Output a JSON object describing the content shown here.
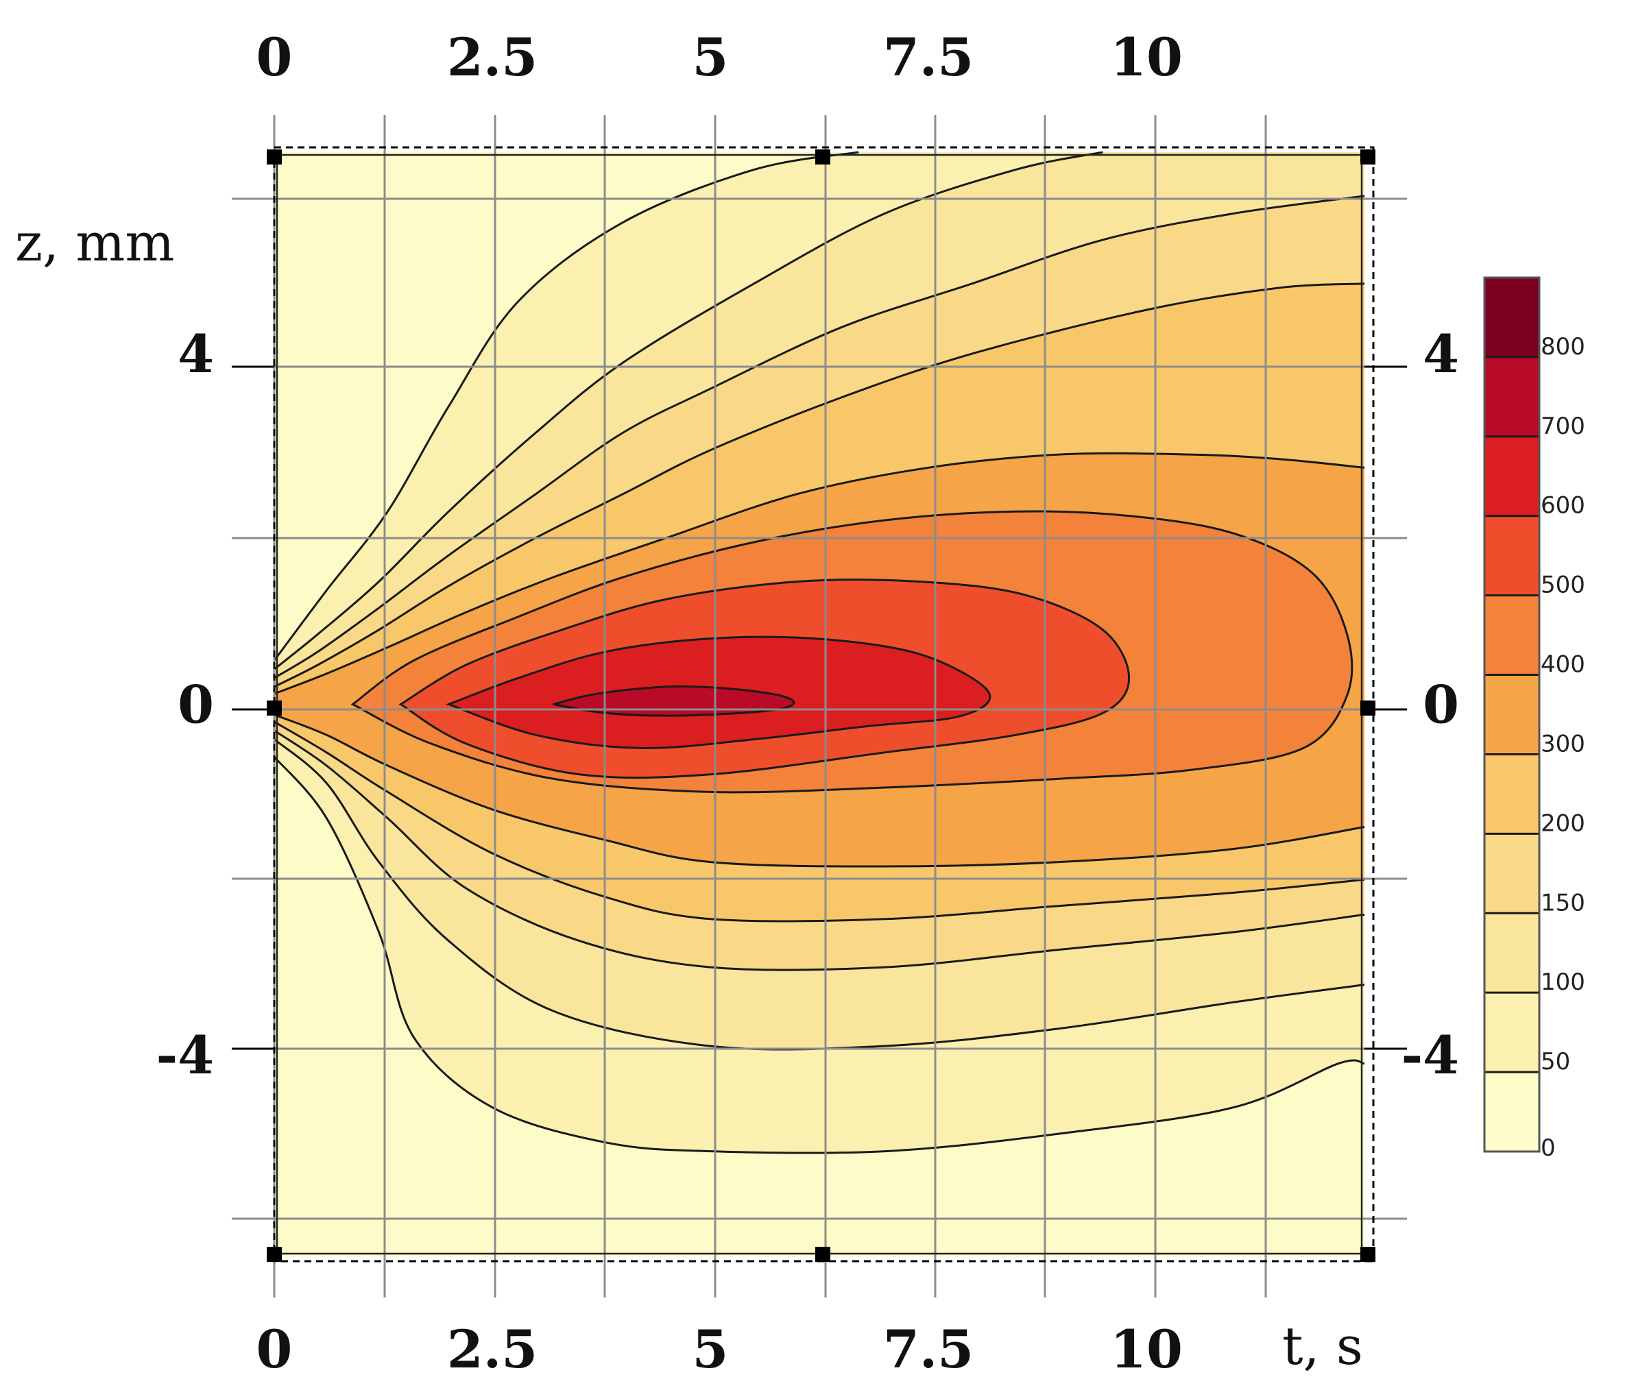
{
  "chart_data": {
    "type": "contour",
    "xlabel": "t, s",
    "ylabel": "z, mm",
    "xlim": [
      0,
      12.5
    ],
    "ylim": [
      -6.3,
      6.3
    ],
    "x_ticks": [
      "0",
      "2.5",
      "5",
      "7.5",
      "10"
    ],
    "x_tick_values": [
      0,
      2.5,
      5,
      7.5,
      10
    ],
    "y_ticks": [
      "4",
      "0",
      "-4"
    ],
    "y_tick_values": [
      4,
      0,
      -4
    ],
    "grid": true,
    "colorbar": {
      "levels": [
        0,
        50,
        100,
        150,
        200,
        300,
        400,
        500,
        600,
        700,
        800
      ],
      "labels": [
        "0",
        "50",
        "100",
        "150",
        "200",
        "300",
        "400",
        "500",
        "600",
        "700",
        "800"
      ],
      "colors": [
        "#fdfbc8",
        "#fbf0b0",
        "#fae59d",
        "#f9d987",
        "#f8c76a",
        "#f5a447",
        "#f3823a",
        "#ef4e2c",
        "#db1e20",
        "#b90a27",
        "#7b0022"
      ]
    },
    "contour_bands": [
      {
        "level": 0,
        "band": "0-50",
        "upper_t": [
          0.0,
          6.7
        ],
        "upper_z": [
          0.5,
          6.3
        ],
        "lower_z_at_t5": -5.1,
        "t_end": 12.5,
        "lower_z_end": -4.1
      },
      {
        "level": 50,
        "band": "50-100",
        "upper_t": [
          0.0,
          9.5
        ],
        "upper_z": [
          0.4,
          6.3
        ],
        "lower_z_at_t5": -3.9,
        "t_end": 12.5,
        "lower_z_end": -3.2
      },
      {
        "level": 100,
        "band": "100-150",
        "upper_z_end": 5.8,
        "lower_z_at_t5": -3.0,
        "t_end": 12.5,
        "lower_z_end": -2.4
      },
      {
        "level": 150,
        "band": "150-200",
        "upper_z_end": 4.8,
        "lower_z_at_t5": -2.45,
        "t_end": 12.5,
        "lower_z_end": -2.0
      },
      {
        "level": 200,
        "band": "200-300",
        "upper_z_end": 4.8,
        "lower_z_at_t5": -1.8,
        "t_end": 12.5,
        "lower_z_end": -1.4
      },
      {
        "level": 300,
        "band": "300-400",
        "upper_z_at_t10": 3.1,
        "lower_z_at_t5": -1.25,
        "t_end": 12.5,
        "upper_z_end": 2.7
      },
      {
        "level": 400,
        "band": "400-500",
        "t_start": 1.5,
        "t_end": 12.3,
        "upper_z_max": 2.2,
        "lower_z_at_t5": -0.95
      },
      {
        "level": 500,
        "band": "500-600",
        "t_start": 1.45,
        "t_end": 9.7,
        "upper_z_max": 1.45,
        "lower_z_at_t5": -0.85
      },
      {
        "level": 600,
        "band": "600-700",
        "t_start": 2.0,
        "t_end": 8.2,
        "upper_z_max": 0.8,
        "lower_z_at_t5": -0.5
      },
      {
        "level": 700,
        "band": "700-800",
        "t_start": 3.2,
        "t_end": 5.9,
        "upper_z_max": 0.2,
        "lower_z_min": -0.15
      }
    ]
  }
}
